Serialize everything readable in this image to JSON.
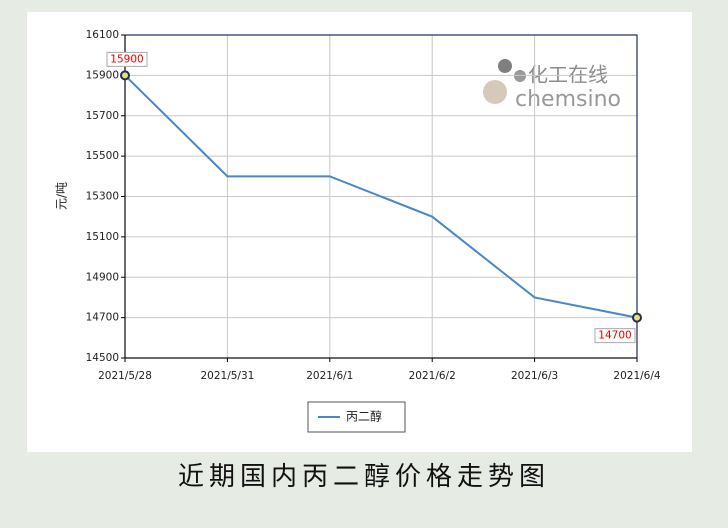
{
  "chart_data": {
    "type": "line",
    "title": null,
    "y_label": "元/吨",
    "watermark": {
      "cn": "化工在线",
      "en": "chemsino"
    },
    "categories": [
      "2021/5/28",
      "2021/5/31",
      "2021/6/1",
      "2021/6/2",
      "2021/6/3",
      "2021/6/4"
    ],
    "series": [
      {
        "name": "丙二醇",
        "color": "#4a86c8",
        "values": [
          15900,
          15400,
          15400,
          15200,
          14800,
          14700
        ]
      }
    ],
    "ylim": [
      14500,
      16100
    ],
    "yticks": [
      14500,
      14700,
      14900,
      15100,
      15300,
      15500,
      15700,
      15900,
      16100
    ],
    "grid": true,
    "legend": "bottom"
  },
  "caption": "近期国内丙二醇价格走势图"
}
